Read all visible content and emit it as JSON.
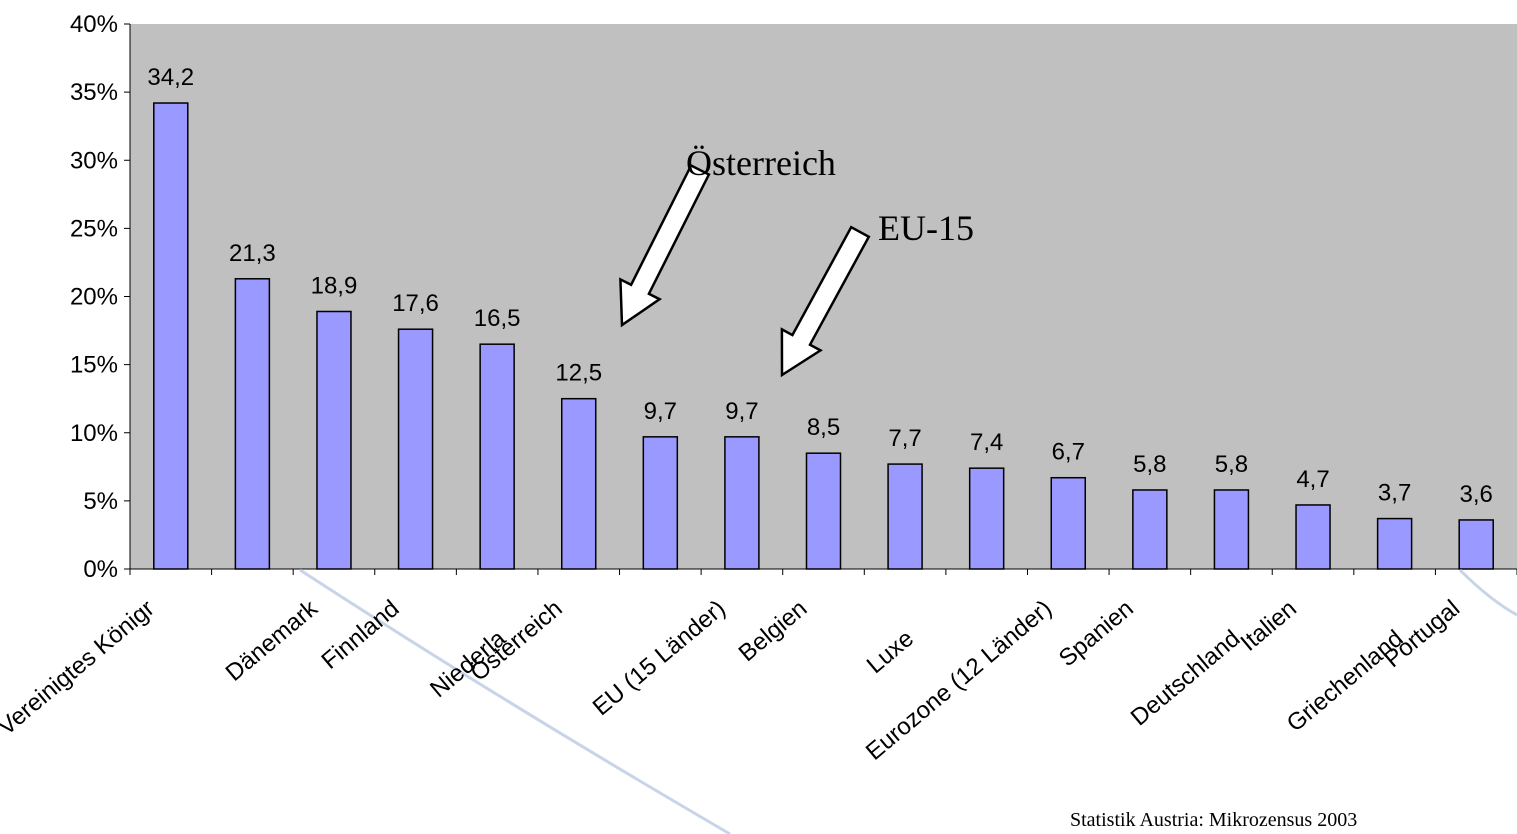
{
  "chart_data": {
    "type": "bar",
    "categories": [
      "Vereinigtes Königr",
      null,
      "Dänemark",
      "Finnland",
      "Niederla",
      "Österreich",
      null,
      "EU (15 Länder)",
      "Belgien",
      "Luxe",
      null,
      "Eurozone (12 Länder)",
      "Spanien",
      "Deutschland",
      "Italien",
      "Griechenland",
      "Portugal"
    ],
    "values": [
      34.2,
      21.3,
      18.9,
      17.6,
      16.5,
      12.5,
      9.7,
      9.7,
      8.5,
      7.7,
      7.4,
      6.7,
      5.8,
      5.8,
      4.7,
      3.7,
      3.6
    ],
    "value_labels": [
      "34,2",
      "21,3",
      "18,9",
      "17,6",
      "16,5",
      "12,5",
      "9,7",
      "9,7",
      "8,5",
      "7,7",
      "7,4",
      "6,7",
      "5,8",
      "5,8",
      "4,7",
      "3,7",
      "3,6"
    ],
    "color": "#9999ff",
    "ylim": [
      0,
      40
    ],
    "yticks": [
      {
        "value": 0,
        "label": "0%"
      },
      {
        "value": 5,
        "label": "5%"
      },
      {
        "value": 10,
        "label": "10%"
      },
      {
        "value": 15,
        "label": "15%"
      },
      {
        "value": 20,
        "label": "20%"
      },
      {
        "value": 25,
        "label": "25%"
      },
      {
        "value": 30,
        "label": "30%"
      },
      {
        "value": 35,
        "label": "35%"
      },
      {
        "value": 40,
        "label": "40%"
      }
    ],
    "annotations": [
      "Österreich",
      "EU-15"
    ],
    "source": "Statistik Austria: Mikrozensus 2003"
  }
}
